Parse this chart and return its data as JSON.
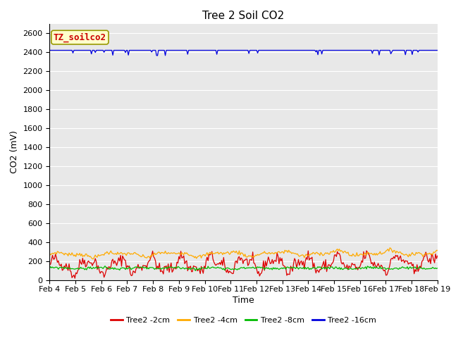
{
  "title": "Tree 2 Soil CO2",
  "ylabel": "CO2 (mV)",
  "xlabel": "Time",
  "ylim": [
    0,
    2700
  ],
  "yticks": [
    0,
    200,
    400,
    600,
    800,
    1000,
    1200,
    1400,
    1600,
    1800,
    2000,
    2200,
    2400,
    2600
  ],
  "xtick_labels": [
    "Feb 4",
    "Feb 5",
    "Feb 6",
    "Feb 7",
    "Feb 8",
    "Feb 9",
    "Feb 10",
    "Feb 11",
    "Feb 12",
    "Feb 13",
    "Feb 14",
    "Feb 15",
    "Feb 16",
    "Feb 17",
    "Feb 18",
    "Feb 19"
  ],
  "n_points": 400,
  "series": [
    {
      "label": "Tree2 -2cm",
      "color": "#dd0000",
      "base": 150,
      "amplitude": 70,
      "noise": 35
    },
    {
      "label": "Tree2 -4cm",
      "color": "#ffaa00",
      "base": 275,
      "amplitude": 18,
      "noise": 12
    },
    {
      "label": "Tree2 -8cm",
      "color": "#00bb00",
      "base": 130,
      "amplitude": 8,
      "noise": 8
    },
    {
      "label": "Tree2 -16cm",
      "color": "#0000dd",
      "base": 2420,
      "amplitude": 3,
      "noise": 2
    }
  ],
  "legend_label": "TZ_soilco2",
  "legend_text_color": "#cc0000",
  "legend_bg_color": "#ffffcc",
  "legend_border_color": "#999900",
  "plot_bg_color": "#e8e8e8",
  "fig_bg_color": "#ffffff",
  "grid_color": "#ffffff",
  "title_fontsize": 11,
  "axis_label_fontsize": 9,
  "tick_fontsize": 8,
  "legend_fontsize": 8
}
